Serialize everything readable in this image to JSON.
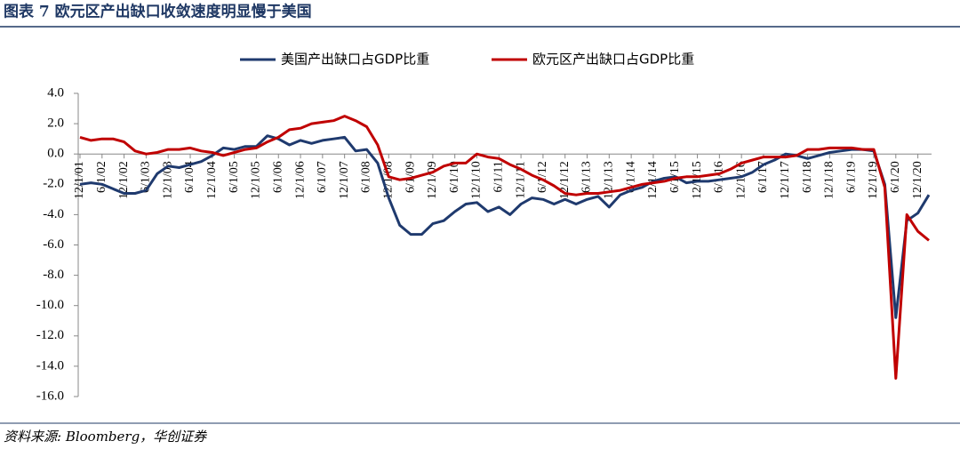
{
  "chart_data": {
    "type": "line",
    "title": "图表 7 欧元区产出缺口收敛速度明显慢于美国",
    "source": "资料来源: Bloomberg，华创证券",
    "categories": [
      "12/1/01",
      null,
      "6/1/02",
      null,
      "12/1/02",
      null,
      "6/1/03",
      null,
      "12/1/03",
      null,
      "6/1/04",
      null,
      "12/1/04",
      null,
      "6/1/05",
      null,
      "12/1/05",
      null,
      "6/1/06",
      null,
      "12/1/06",
      null,
      "6/1/07",
      null,
      "12/1/07",
      null,
      "6/1/08",
      null,
      "12/1/08",
      null,
      "6/1/09",
      null,
      "12/1/09",
      null,
      "6/1/10",
      null,
      "12/1/10",
      null,
      "6/1/11",
      null,
      "12/1/11",
      null,
      "6/1/12",
      null,
      "12/1/12",
      null,
      "6/1/13",
      null,
      "12/1/13",
      null,
      "6/1/14",
      null,
      "12/1/14",
      null,
      "6/1/15",
      null,
      "12/1/15",
      null,
      "6/1/16",
      null,
      "12/1/16",
      null,
      "6/1/17",
      null,
      "12/1/17",
      null,
      "6/1/18",
      null,
      "12/1/18",
      null,
      "6/1/19",
      null,
      "12/1/19",
      null,
      "6/1/20",
      null,
      "12/1/20",
      null
    ],
    "series": [
      {
        "name": "美国产出缺口占GDP比重",
        "color": "#1f3a6e",
        "values": [
          -2.0,
          -1.9,
          -2.0,
          -2.3,
          -2.6,
          -2.6,
          -2.4,
          -1.3,
          -0.8,
          -0.9,
          -0.7,
          -0.5,
          -0.1,
          0.4,
          0.3,
          0.5,
          0.5,
          1.2,
          1.0,
          0.6,
          0.9,
          0.7,
          0.9,
          1.0,
          1.1,
          0.2,
          0.3,
          -0.6,
          -2.9,
          -4.7,
          -5.3,
          -5.3,
          -4.6,
          -4.4,
          -3.8,
          -3.3,
          -3.2,
          -3.8,
          -3.5,
          -4.0,
          -3.3,
          -2.9,
          -3.0,
          -3.3,
          -3.0,
          -3.3,
          -3.0,
          -2.8,
          -3.5,
          -2.7,
          -2.4,
          -2.2,
          -1.8,
          -1.6,
          -1.5,
          -1.9,
          -1.8,
          -1.8,
          -1.7,
          -1.6,
          -1.5,
          -1.2,
          -0.7,
          -0.4,
          0.0,
          -0.1,
          -0.3,
          -0.1,
          0.1,
          0.2,
          0.3,
          0.3,
          0.2,
          -2.0,
          -10.8,
          -4.4,
          -3.9,
          -2.7
        ]
      },
      {
        "name": "欧元区产出缺口占GDP比重",
        "color": "#c00000",
        "values": [
          1.1,
          0.9,
          1.0,
          1.0,
          0.8,
          0.2,
          0.0,
          0.1,
          0.3,
          0.3,
          0.4,
          0.2,
          0.1,
          -0.1,
          0.1,
          0.3,
          0.4,
          0.8,
          1.1,
          1.6,
          1.7,
          2.0,
          2.1,
          2.2,
          2.5,
          2.2,
          1.8,
          0.6,
          -1.5,
          -1.7,
          -1.6,
          -1.4,
          -1.2,
          -0.8,
          -0.6,
          -0.6,
          0.0,
          -0.2,
          -0.3,
          -0.7,
          -1.0,
          -1.4,
          -1.7,
          -2.1,
          -2.6,
          -2.7,
          -2.6,
          -2.6,
          -2.5,
          -2.4,
          -2.2,
          -2.0,
          -1.9,
          -1.8,
          -1.6,
          -1.5,
          -1.5,
          -1.4,
          -1.3,
          -1.0,
          -0.6,
          -0.4,
          -0.2,
          -0.2,
          -0.2,
          -0.1,
          0.3,
          0.3,
          0.4,
          0.4,
          0.4,
          0.3,
          0.3,
          -2.2,
          -14.8,
          -4.0,
          -5.1,
          -5.7
        ]
      }
    ],
    "ylim": [
      -16,
      4
    ],
    "yticks": [
      {
        "value": 4,
        "label": "4.0"
      },
      {
        "value": 2,
        "label": "2.0"
      },
      {
        "value": 0,
        "label": "0.0"
      },
      {
        "value": -2,
        "label": "-2.0"
      },
      {
        "value": -4,
        "label": "-4.0"
      },
      {
        "value": -6,
        "label": "-6.0"
      },
      {
        "value": -8,
        "label": "-8.0"
      },
      {
        "value": -10,
        "label": "-10.0"
      },
      {
        "value": -12,
        "label": "-12.0"
      },
      {
        "value": -14,
        "label": "-14.0"
      },
      {
        "value": -16,
        "label": "-16.0"
      }
    ],
    "grid": false
  }
}
